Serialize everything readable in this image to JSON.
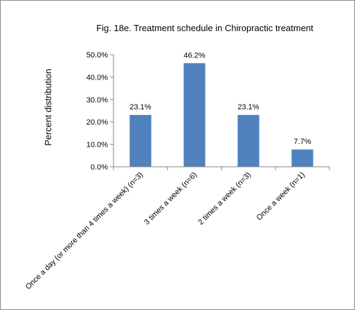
{
  "chart_data": {
    "type": "bar",
    "title": "Fig. 18e. Treatment schedule in Chiropractic treatment",
    "xlabel": "",
    "ylabel": "Percent distribution",
    "categories": [
      "Once a day (or more than 4 times a week) (n=3)",
      "3 times a week (n=6)",
      "2 times a week (n=3)",
      "Once a week (n=1)"
    ],
    "values": [
      23.1,
      46.2,
      23.1,
      7.7
    ],
    "data_labels": [
      "23.1%",
      "46.2%",
      "23.1%",
      "7.7%"
    ],
    "ylim": [
      0,
      50
    ],
    "yticks": [
      0,
      10,
      20,
      30,
      40,
      50
    ],
    "ytick_labels": [
      "0.0%",
      "10.0%",
      "20.0%",
      "30.0%",
      "40.0%",
      "50.0%"
    ],
    "grid": false,
    "legend": "none",
    "colors": {
      "bar": "#4f81bd",
      "axis": "#868686"
    }
  }
}
